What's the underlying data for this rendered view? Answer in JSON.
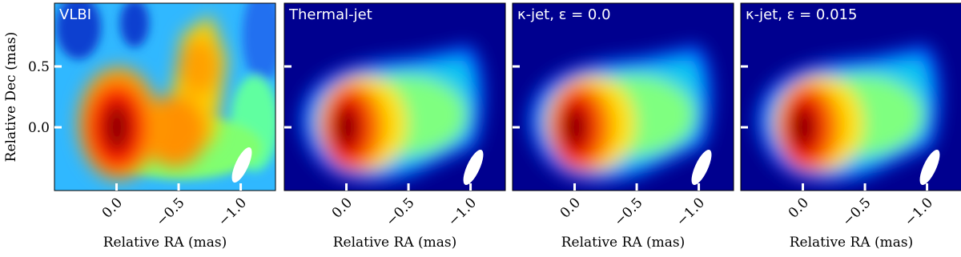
{
  "chart_data": [
    {
      "type": "heatmap",
      "title": "VLBI",
      "xlabel": "Relative RA (mas)",
      "ylabel": "Relative Dec (mas)",
      "xlim": [
        0.5,
        -1.28
      ],
      "ylim": [
        -0.52,
        1.02
      ],
      "xticks": [
        {
          "value": 0,
          "label": "0.0"
        },
        {
          "value": -0.5,
          "label": "−0.5"
        },
        {
          "value": -1.0,
          "label": "−1.0"
        }
      ],
      "yticks": [
        {
          "value": 0,
          "label": "0.0"
        },
        0.5
      ]
    },
    {
      "type": "heatmap",
      "title": "Thermal-jet",
      "xlabel": "Relative RA (mas)",
      "xlim": [
        0.5,
        -1.28
      ],
      "ylim": [
        -0.52,
        1.02
      ],
      "xticks": [
        {
          "value": 0,
          "label": "0.0"
        },
        {
          "value": -0.5,
          "label": "−0.5"
        },
        {
          "value": -1.0,
          "label": "−1.0"
        }
      ],
      "yticks": [
        0,
        0.5
      ]
    },
    {
      "type": "heatmap",
      "title": "κ-jet, ε = 0.0",
      "xlabel": "Relative RA (mas)",
      "xlim": [
        0.5,
        -1.28
      ],
      "ylim": [
        -0.52,
        1.02
      ],
      "xticks": [
        {
          "value": 0,
          "label": "0.0"
        },
        {
          "value": -0.5,
          "label": "−0.5"
        },
        {
          "value": -1.0,
          "label": "−1.0"
        }
      ],
      "yticks": [
        0,
        0.5
      ]
    },
    {
      "type": "heatmap",
      "title": "κ-jet, ε = 0.015",
      "xlabel": "Relative RA (mas)",
      "xlim": [
        0.5,
        -1.28
      ],
      "ylim": [
        -0.52,
        1.02
      ],
      "xticks": [
        {
          "value": 0,
          "label": "0.0"
        },
        {
          "value": -0.5,
          "label": "−0.5"
        },
        {
          "value": -1.0,
          "label": "−1.0"
        }
      ],
      "yticks": [
        0,
        0.5
      ]
    }
  ]
}
